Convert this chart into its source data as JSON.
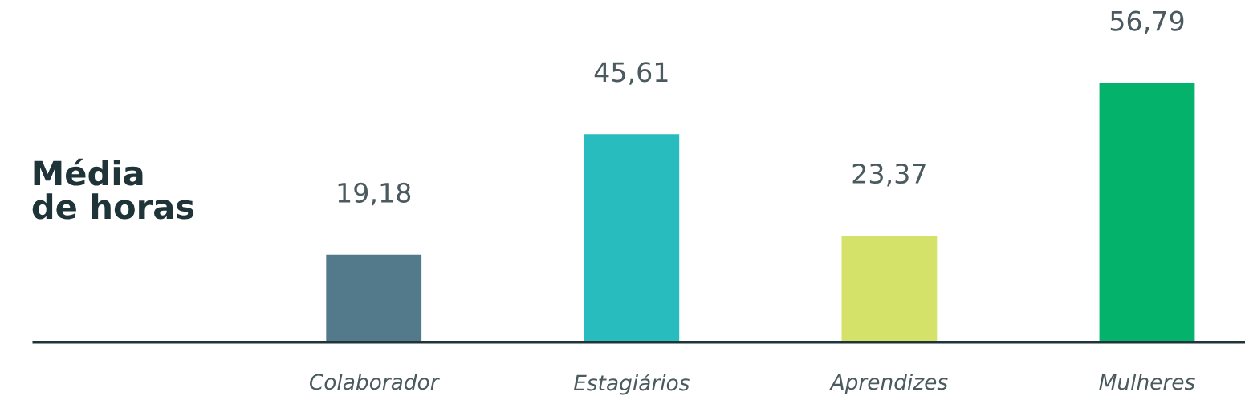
{
  "chart_data": {
    "type": "bar",
    "ylabel": "Média de horas",
    "categories": [
      "Colaborador",
      "Estagiários",
      "Aprendizes",
      "Mulheres"
    ],
    "values": [
      19.18,
      45.61,
      23.37,
      56.79
    ],
    "value_labels": [
      "19,18",
      "45,61",
      "23,37",
      "56,79"
    ],
    "colors": [
      "#537a8b",
      "#29bcbf",
      "#d4e26a",
      "#04b26b"
    ],
    "grid": false,
    "legend": false
  }
}
